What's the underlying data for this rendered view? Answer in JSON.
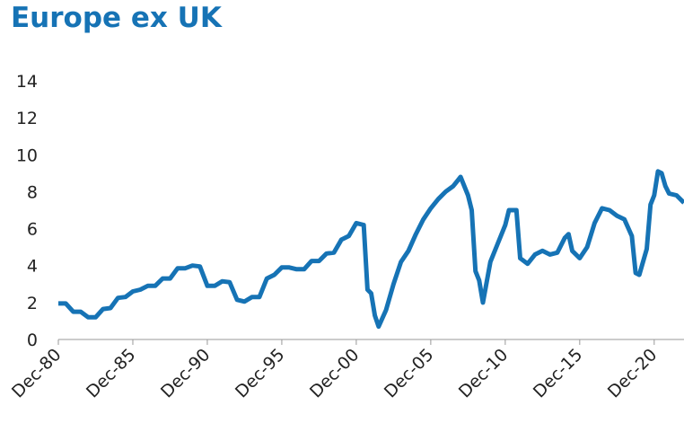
{
  "chart_data": {
    "type": "line",
    "title": "Europe ex UK",
    "x": [
      "Dec-80",
      "Jun-81",
      "Dec-81",
      "Jun-82",
      "Dec-82",
      "Jun-83",
      "Dec-83",
      "Jun-84",
      "Dec-84",
      "Jun-85",
      "Dec-85",
      "Jun-86",
      "Dec-86",
      "Jun-87",
      "Dec-87",
      "Jun-88",
      "Dec-88",
      "Jun-89",
      "Dec-89",
      "Jun-90",
      "Dec-90",
      "Jun-91",
      "Dec-91",
      "Jun-92",
      "Dec-92",
      "Jun-93",
      "Dec-93",
      "Jun-94",
      "Dec-94",
      "Jun-95",
      "Dec-95",
      "Jun-96",
      "Dec-96",
      "Jun-97",
      "Dec-97",
      "Jun-98",
      "Dec-98",
      "Jun-99",
      "Dec-99",
      "Jun-00",
      "Dec-00",
      "Jun-01",
      "Sep-01",
      "Dec-01",
      "Mar-02",
      "Jun-02",
      "Dec-02",
      "Jun-03",
      "Dec-03",
      "Jun-04",
      "Dec-04",
      "Jun-05",
      "Dec-05",
      "Jun-06",
      "Dec-06",
      "Jun-07",
      "Dec-07",
      "Jun-08",
      "Sep-08",
      "Dec-08",
      "Mar-09",
      "Jun-09",
      "Dec-09",
      "Jun-10",
      "Dec-10",
      "Mar-11",
      "Sep-11",
      "Dec-11",
      "Jun-12",
      "Dec-12",
      "Jun-13",
      "Dec-13",
      "Jun-14",
      "Dec-14",
      "Mar-15",
      "Jun-15",
      "Dec-15",
      "Jun-16",
      "Dec-16",
      "Jun-17",
      "Dec-17",
      "Jun-18",
      "Dec-18",
      "Jun-19",
      "Sep-19",
      "Dec-19",
      "Jun-20",
      "Sep-20",
      "Dec-20",
      "Mar-21",
      "Jun-21",
      "Sep-21",
      "Dec-21",
      "Jun-22",
      "Dec-22"
    ],
    "series": [
      {
        "name": "Europe ex UK",
        "color": "#1673b5",
        "values": [
          1.95,
          1.95,
          1.5,
          1.5,
          1.2,
          1.2,
          1.65,
          1.7,
          2.25,
          2.3,
          2.6,
          2.7,
          2.9,
          2.9,
          3.3,
          3.3,
          3.85,
          3.85,
          4.0,
          3.95,
          2.9,
          2.9,
          3.15,
          3.1,
          2.15,
          2.05,
          2.3,
          2.3,
          3.3,
          3.5,
          3.9,
          3.9,
          3.8,
          3.8,
          4.25,
          4.25,
          4.65,
          4.7,
          5.4,
          5.6,
          6.3,
          6.2,
          2.7,
          2.5,
          1.3,
          0.7,
          1.6,
          3.0,
          4.2,
          4.8,
          5.7,
          6.5,
          7.1,
          7.6,
          8.0,
          8.3,
          8.8,
          7.8,
          7.0,
          3.7,
          3.2,
          2.0,
          4.2,
          5.2,
          6.2,
          7.0,
          7.0,
          4.4,
          4.1,
          4.6,
          4.8,
          4.6,
          4.7,
          5.5,
          5.7,
          4.8,
          4.4,
          5.0,
          6.3,
          7.1,
          7.0,
          6.7,
          6.5,
          5.6,
          3.6,
          3.5,
          4.9,
          7.3,
          7.8,
          9.1,
          9.0,
          8.3,
          7.9,
          7.8,
          7.4
        ]
      }
    ],
    "xlim": [
      "Dec-80",
      "Dec-22"
    ],
    "xticks": [
      "Dec-80",
      "Dec-85",
      "Dec-90",
      "Dec-95",
      "Dec-00",
      "Dec-05",
      "Dec-10",
      "Dec-15",
      "Dec-20"
    ],
    "ylim": [
      0,
      14
    ],
    "yticks": [
      0,
      2,
      4,
      6,
      8,
      10,
      12,
      14
    ],
    "grid": false
  }
}
